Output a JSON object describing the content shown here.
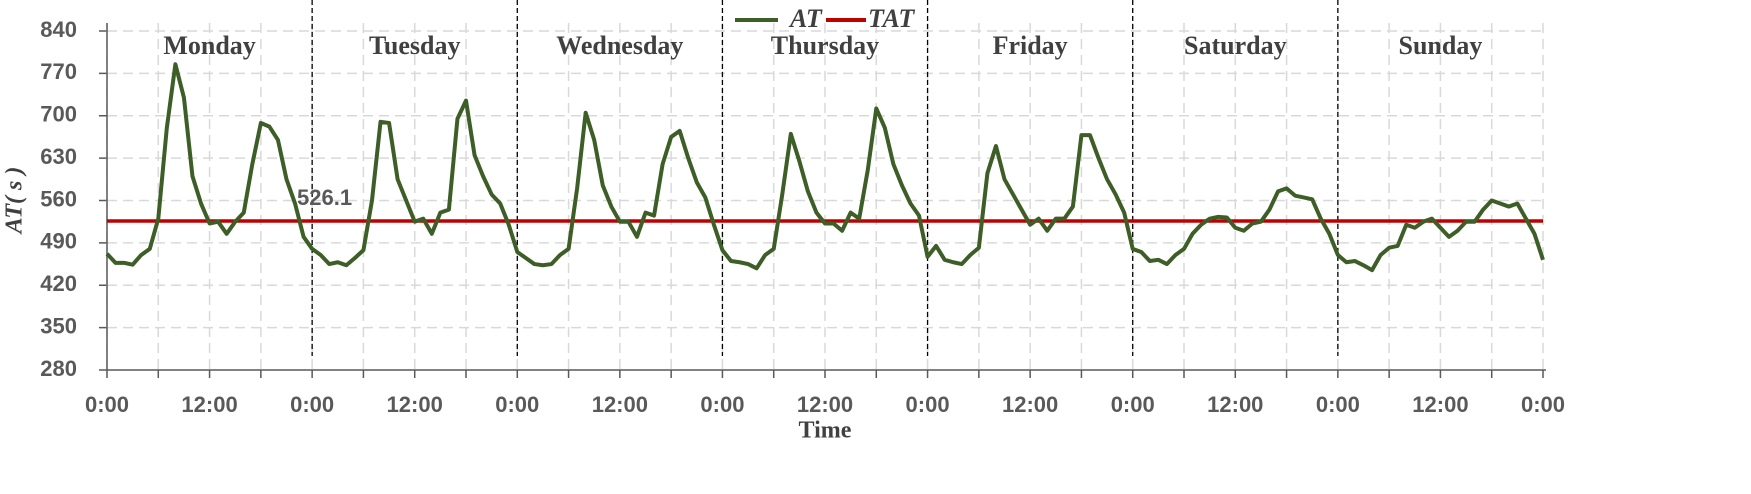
{
  "chart_data": {
    "type": "line",
    "y_label": "AT( s )",
    "x_label": "Time",
    "day_labels": [
      "Monday",
      "Tuesday",
      "Wednesday",
      "Thursday",
      "Friday",
      "Saturday",
      "Sunday"
    ],
    "x": [
      0,
      1,
      2,
      3,
      4,
      5,
      6,
      7,
      8,
      9,
      10,
      11,
      12,
      13,
      14,
      15,
      16,
      17,
      18,
      19,
      20,
      21,
      22,
      23,
      24,
      25,
      26,
      27,
      28,
      29,
      30,
      31,
      32,
      33,
      34,
      35,
      36,
      37,
      38,
      39,
      40,
      41,
      42,
      43,
      44,
      45,
      46,
      47,
      48,
      49,
      50,
      51,
      52,
      53,
      54,
      55,
      56,
      57,
      58,
      59,
      60,
      61,
      62,
      63,
      64,
      65,
      66,
      67,
      68,
      69,
      70,
      71,
      72,
      73,
      74,
      75,
      76,
      77,
      78,
      79,
      80,
      81,
      82,
      83,
      84,
      85,
      86,
      87,
      88,
      89,
      90,
      91,
      92,
      93,
      94,
      95,
      96,
      97,
      98,
      99,
      100,
      101,
      102,
      103,
      104,
      105,
      106,
      107,
      108,
      109,
      110,
      111,
      112,
      113,
      114,
      115,
      116,
      117,
      118,
      119,
      120,
      121,
      122,
      123,
      124,
      125,
      126,
      127,
      128,
      129,
      130,
      131,
      132,
      133,
      134,
      135,
      136,
      137,
      138,
      139,
      140,
      141,
      142,
      143,
      144,
      145,
      146,
      147,
      148,
      149,
      150,
      151,
      152,
      153,
      154,
      155,
      156,
      157,
      158,
      159,
      160,
      161,
      162,
      163,
      164,
      165,
      166,
      167,
      168
    ],
    "series": [
      {
        "name": "AT",
        "color": "#3d5e27",
        "values": [
          472,
          457,
          457,
          454,
          470,
          480,
          530,
          680,
          785,
          730,
          600,
          555,
          522,
          525,
          505,
          525,
          540,
          620,
          688,
          682,
          660,
          595,
          555,
          500,
          480,
          470,
          455,
          458,
          453,
          465,
          478,
          560,
          690,
          688,
          595,
          560,
          525,
          530,
          505,
          540,
          545,
          695,
          725,
          635,
          600,
          570,
          555,
          520,
          475,
          465,
          455,
          453,
          455,
          470,
          480,
          580,
          705,
          660,
          585,
          550,
          525,
          525,
          500,
          540,
          535,
          620,
          665,
          675,
          630,
          590,
          565,
          520,
          478,
          460,
          458,
          455,
          448,
          470,
          480,
          570,
          670,
          625,
          575,
          540,
          522,
          522,
          510,
          540,
          530,
          610,
          712,
          680,
          620,
          585,
          555,
          535,
          467,
          485,
          462,
          458,
          455,
          470,
          482,
          605,
          650,
          595,
          570,
          545,
          520,
          530,
          510,
          530,
          530,
          550,
          668,
          668,
          630,
          595,
          570,
          540,
          480,
          475,
          460,
          462,
          455,
          470,
          480,
          505,
          520,
          530,
          533,
          532,
          515,
          510,
          522,
          525,
          545,
          575,
          580,
          568,
          565,
          562,
          530,
          505,
          470,
          458,
          460,
          453,
          445,
          470,
          482,
          485,
          520,
          515,
          525,
          530,
          515,
          500,
          510,
          525,
          525,
          545,
          560,
          555,
          550,
          555,
          530,
          505,
          462
        ]
      }
    ],
    "reference_line": {
      "name": "TAT",
      "color": "#c00000",
      "value": 526.1
    },
    "ylim": [
      280,
      840
    ],
    "yticks": [
      280,
      350,
      420,
      490,
      560,
      630,
      700,
      770,
      840
    ],
    "xlim": [
      0,
      168
    ],
    "xticks": [
      {
        "value": 0,
        "label": "0:00"
      },
      {
        "value": 12,
        "label": "12:00"
      },
      {
        "value": 24,
        "label": "0:00"
      },
      {
        "value": 36,
        "label": "12:00"
      },
      {
        "value": 48,
        "label": "0:00"
      },
      {
        "value": 60,
        "label": "12:00"
      },
      {
        "value": 72,
        "label": "0:00"
      },
      {
        "value": 84,
        "label": "12:00"
      },
      {
        "value": 96,
        "label": "0:00"
      },
      {
        "value": 108,
        "label": "12:00"
      },
      {
        "value": 120,
        "label": "0:00"
      },
      {
        "value": 132,
        "label": "12:00"
      },
      {
        "value": 144,
        "label": "0:00"
      },
      {
        "value": 156,
        "label": "12:00"
      },
      {
        "value": 168,
        "label": "0:00"
      }
    ],
    "x_minor_ticks": [
      6,
      18,
      30,
      42,
      54,
      66,
      78,
      90,
      102,
      114,
      126,
      138,
      150,
      162
    ],
    "grid": true
  }
}
